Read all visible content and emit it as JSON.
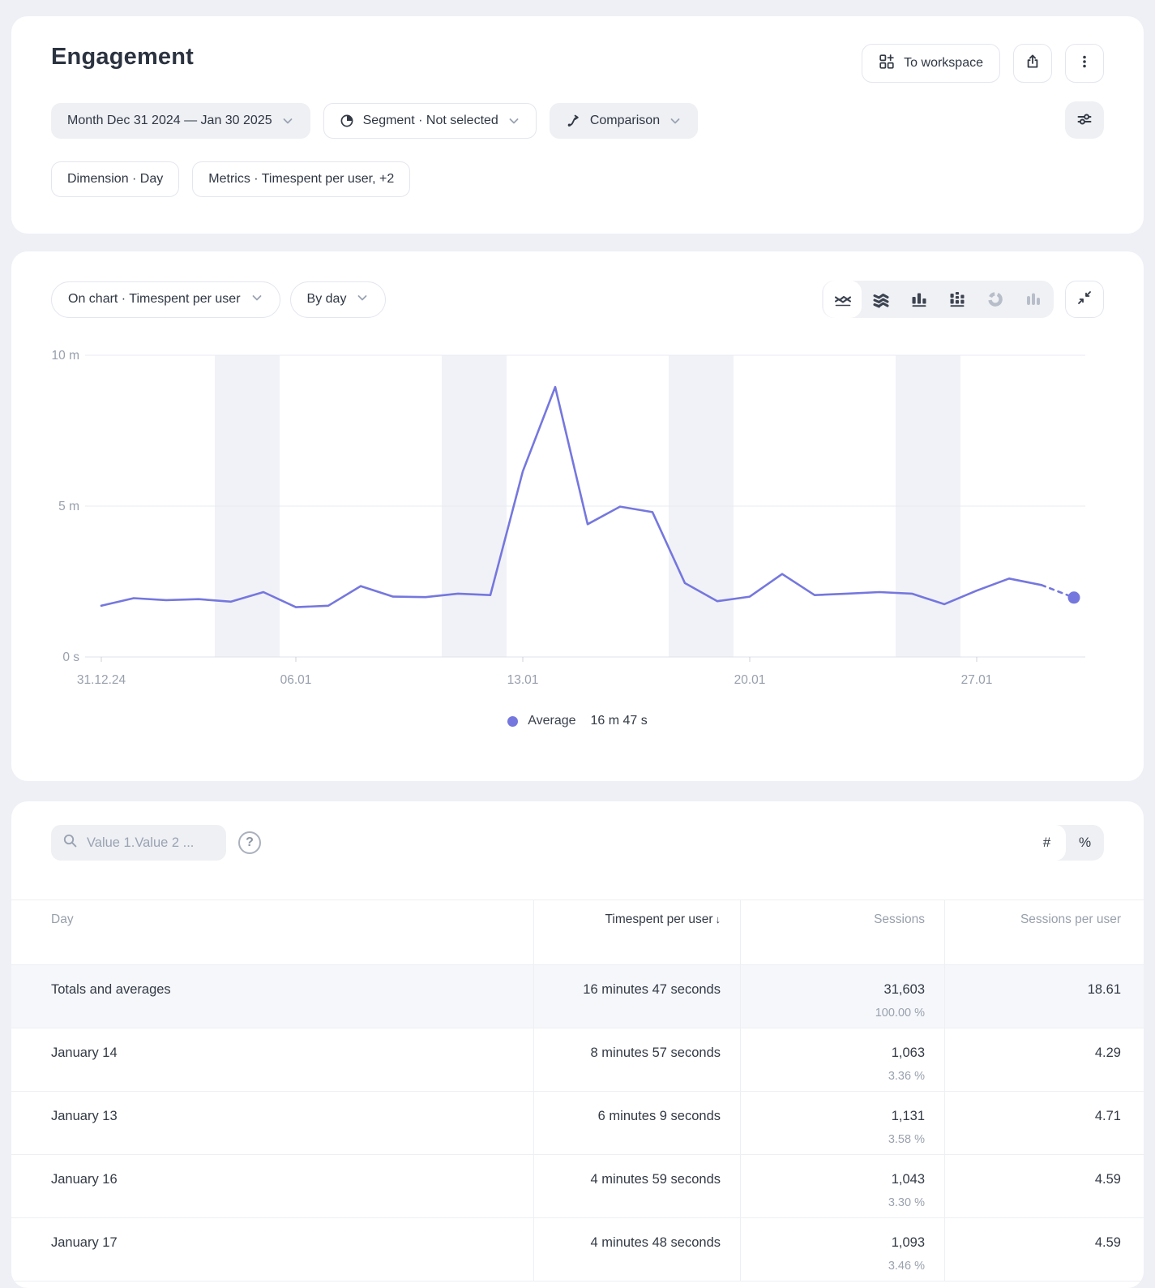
{
  "page": {
    "title": "Engagement",
    "background": "#eef0f5",
    "accent": "#7577de"
  },
  "header": {
    "to_workspace_label": "To workspace",
    "filters_row1": [
      {
        "name": "month-filter-chip",
        "label": "Month Dec 31 2024 — Jan 30 2025",
        "style": "gray",
        "icon": null,
        "chevron": true
      },
      {
        "name": "segment-filter-chip",
        "label": "Segment · Not selected",
        "style": "white",
        "icon": "segment-pie",
        "chevron": true
      },
      {
        "name": "comparison-filter-chip",
        "label": "Comparison",
        "style": "gray",
        "icon": "comparison",
        "chevron": true
      }
    ],
    "filters_row2": [
      {
        "name": "dimension-filter-chip",
        "label": "Dimension · Day",
        "style": "white",
        "icon": null,
        "chevron": false
      },
      {
        "name": "metrics-filter-chip",
        "label": "Metrics · Timespent per user, +2",
        "style": "white",
        "icon": null,
        "chevron": false
      }
    ],
    "icons": [
      "grid-plus-icon",
      "share-icon",
      "kebab-menu-icon",
      "sliders-icon",
      "segment-pie-icon",
      "comparison-arrows-icon",
      "chevron-down-icon"
    ]
  },
  "chart": {
    "on_chart_label": "On chart · Timespent per user",
    "granularity_label": "By day",
    "type_buttons": [
      {
        "name": "line-chart-type-button",
        "icon": "lines",
        "state": "selected"
      },
      {
        "name": "stacked-area-chart-type-button",
        "icon": "stacked-area",
        "state": "normal"
      },
      {
        "name": "column-chart-type-button",
        "icon": "columns",
        "state": "normal"
      },
      {
        "name": "stacked-column-chart-type-button",
        "icon": "stacked-columns",
        "state": "normal"
      },
      {
        "name": "donut-chart-type-button",
        "icon": "donut",
        "state": "disabled"
      },
      {
        "name": "histogram-chart-type-button",
        "icon": "histogram",
        "state": "disabled"
      }
    ],
    "collapse_button_icon": "collapse-icon",
    "legend": {
      "label": "Average",
      "value": "16 m 47 s"
    }
  },
  "chart_data": {
    "type": "line",
    "title": "Timespent per user by day",
    "x": [
      "31.12.24",
      "01.01",
      "02.01",
      "03.01",
      "04.01",
      "05.01",
      "06.01",
      "07.01",
      "08.01",
      "09.01",
      "10.01",
      "11.01",
      "12.01",
      "13.01",
      "14.01",
      "15.01",
      "16.01",
      "17.01",
      "18.01",
      "19.01",
      "20.01",
      "21.01",
      "22.01",
      "23.01",
      "24.01",
      "25.01",
      "26.01",
      "27.01",
      "28.01",
      "29.01",
      "30.01"
    ],
    "series": [
      {
        "name": "Timespent per user",
        "unit": "seconds",
        "values": [
          102,
          117,
          113,
          115,
          110,
          129,
          99,
          102,
          141,
          120,
          119,
          126,
          123,
          369,
          537,
          264,
          299,
          288,
          147,
          111,
          120,
          165,
          123,
          126,
          129,
          126,
          105,
          132,
          156,
          143,
          118
        ]
      }
    ],
    "x_tick_indices": [
      0,
      6,
      13,
      20,
      27
    ],
    "x_tick_labels": [
      "31.12.24",
      "06.01",
      "13.01",
      "20.01",
      "27.01"
    ],
    "y_ticks": [
      "10 m",
      "5 m",
      "0 s"
    ],
    "ylim_minutes": [
      0,
      10
    ],
    "weekend_band_day_indices": [
      [
        4,
        5
      ],
      [
        11,
        12
      ],
      [
        18,
        19
      ],
      [
        25,
        26
      ]
    ],
    "last_point_dashed": true,
    "line_color": "#7577de",
    "average_legend": "Average 16 m 47 s"
  },
  "table": {
    "search_placeholder": "Value 1.Value 2 ...",
    "toggle": {
      "options": [
        "#",
        "%"
      ],
      "selected": "#"
    },
    "columns": [
      "Day",
      "Timespent per user",
      "Sessions",
      "Sessions per user"
    ],
    "sort": {
      "column": "Timespent per user",
      "direction": "desc"
    },
    "rows": [
      {
        "day": "Totals and averages",
        "timespent": "16 minutes 47 seconds",
        "sessions": "31,603",
        "sessions_pct": "100.00 %",
        "sessions_per_user": "18.61",
        "is_total": true
      },
      {
        "day": "January 14",
        "timespent": "8 minutes 57 seconds",
        "sessions": "1,063",
        "sessions_pct": "3.36 %",
        "sessions_per_user": "4.29",
        "is_total": false
      },
      {
        "day": "January 13",
        "timespent": "6 minutes 9 seconds",
        "sessions": "1,131",
        "sessions_pct": "3.58 %",
        "sessions_per_user": "4.71",
        "is_total": false
      },
      {
        "day": "January 16",
        "timespent": "4 minutes 59 seconds",
        "sessions": "1,043",
        "sessions_pct": "3.30 %",
        "sessions_per_user": "4.59",
        "is_total": false
      },
      {
        "day": "January 17",
        "timespent": "4 minutes 48 seconds",
        "sessions": "1,093",
        "sessions_pct": "3.46 %",
        "sessions_per_user": "4.59",
        "is_total": false
      }
    ]
  }
}
